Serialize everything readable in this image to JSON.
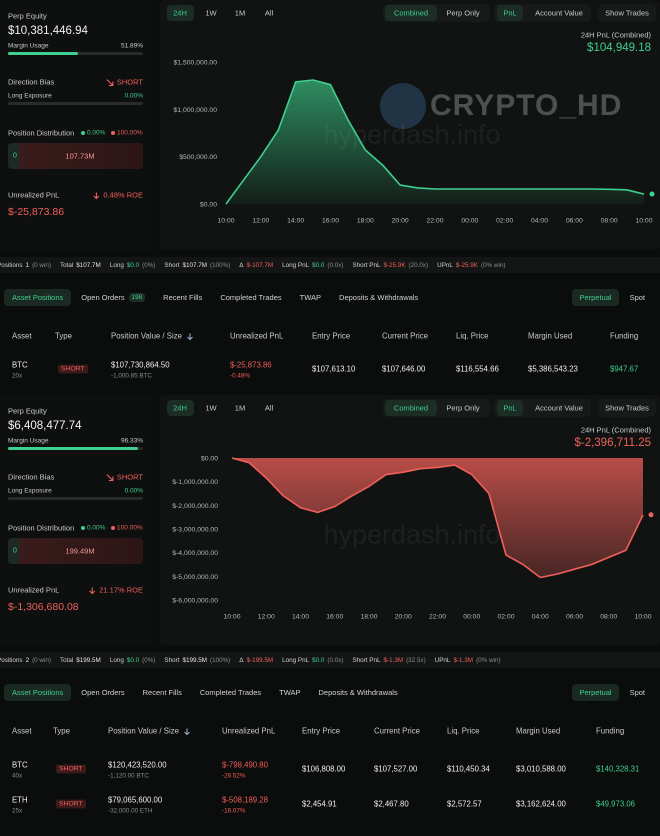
{
  "panels": [
    {
      "sidebar": {
        "perp_equity_label": "Perp Equity",
        "perp_equity": "$10,381,446.94",
        "margin_usage_label": "Margin Usage",
        "margin_usage": {
          "value": 51.89,
          "label": "51.89%"
        },
        "direction_bias_label": "Direction Bias",
        "direction_bias": "SHORT",
        "long_exposure_label": "Long Exposure",
        "long_exposure": {
          "value": 0,
          "label": "0.00%"
        },
        "position_distribution_label": "Position Distribution",
        "long_share": "0.00%",
        "short_share": "100.00%",
        "long_amount": "0",
        "short_amount": "107.73M",
        "unrealized_pnl_label": "Unrealized PnL",
        "roe": "0.48% ROE",
        "unrealized_pnl": "$-25,873.86"
      },
      "chart_controls": {
        "ranges": [
          "24H",
          "1W",
          "1M",
          "All"
        ],
        "views": [
          "Combined",
          "Perp Only"
        ],
        "metrics": [
          "PnL",
          "Account Value"
        ],
        "show_trades": "Show Trades"
      },
      "brand_watermark": "CRYPTO_HD",
      "site_watermark": "hyperdash.info",
      "chart": {
        "type": "area",
        "title": "24H PnL (Combined)",
        "total": "$104,949.18",
        "color": "#3fcf8e",
        "categories": [
          "10:00",
          null,
          "12:00",
          null,
          "14:00",
          null,
          "16:00",
          null,
          "18:00",
          null,
          "20:00",
          null,
          "22:00",
          null,
          "00:00",
          null,
          "02:00",
          null,
          "04:00",
          null,
          "06:00",
          null,
          "08:00",
          null,
          "10:00"
        ],
        "values": [
          0,
          250000,
          500000,
          780000,
          1290000,
          1310000,
          1260000,
          890000,
          570000,
          410000,
          200000,
          170000,
          158000,
          158000,
          158000,
          158000,
          158000,
          158000,
          158000,
          158000,
          158000,
          158000,
          155000,
          150000,
          105000
        ],
        "ylim": [
          0,
          1500000
        ],
        "yticks": [
          {
            "value": 0,
            "label": "$0.00"
          },
          {
            "value": 500000,
            "label": "$500,000.00"
          },
          {
            "value": 1000000,
            "label": "$1,000,000.00"
          },
          {
            "value": 1500000,
            "label": "$1,500,000.00"
          }
        ]
      },
      "summary": [
        {
          "label": "Positions",
          "value": "1",
          "note": "(0 win)"
        },
        {
          "label": "Total",
          "value": "$107.7M"
        },
        {
          "label": "Long",
          "value": "$0.0",
          "note": "(0%)"
        },
        {
          "label": "Short",
          "value": "$107.7M",
          "note": "(100%)"
        },
        {
          "label": "Δ",
          "value": "$-107.7M"
        },
        {
          "label": "Long PnL",
          "value": "$0.0",
          "note": "(0.0x)"
        },
        {
          "label": "Short PnL",
          "value": "$-25.9K",
          "note": "(20.0x)"
        },
        {
          "label": "UPnL",
          "value": "$-25.9K",
          "note": "(0% win)"
        }
      ],
      "tabs": [
        {
          "label": "Asset Positions"
        },
        {
          "label": "Open Orders",
          "badge": "198"
        },
        {
          "label": "Recent Fills"
        },
        {
          "label": "Completed Trades"
        },
        {
          "label": "TWAP"
        },
        {
          "label": "Deposits & Withdrawals"
        }
      ],
      "market_tabs": [
        "Perpetual",
        "Spot"
      ],
      "table": {
        "columns": [
          "Asset",
          "Type",
          "Position Value / Size",
          "Unrealized PnL",
          "Entry Price",
          "Current Price",
          "Liq. Price",
          "Margin Used",
          "Funding"
        ],
        "rows": [
          {
            "asset": "BTC",
            "leverage": "20x",
            "type": "SHORT",
            "position_value": "$107,730,864.50",
            "size": "-1,000.85 BTC",
            "unrealized_pnl": "$-25,873.86",
            "pnl_pct": "-0.48%",
            "entry": "$107,613.10",
            "current": "$107,646.00",
            "liq": "$116,554.66",
            "margin": "$5,386,543.23",
            "funding": "$947.67"
          }
        ]
      }
    },
    {
      "sidebar": {
        "perp_equity_label": "Perp Equity",
        "perp_equity": "$6,408,477.74",
        "margin_usage_label": "Margin Usage",
        "margin_usage": {
          "value": 96.33,
          "label": "96.33%"
        },
        "direction_bias_label": "Direction Bias",
        "direction_bias": "SHORT",
        "long_exposure_label": "Long Exposure",
        "long_exposure": {
          "value": 0,
          "label": "0.00%"
        },
        "position_distribution_label": "Position Distribution",
        "long_share": "0.00%",
        "short_share": "100.00%",
        "long_amount": "0",
        "short_amount": "199.49M",
        "unrealized_pnl_label": "Unrealized PnL",
        "roe": "21.17% ROE",
        "unrealized_pnl": "$-1,306,680.08"
      },
      "chart_controls": {
        "ranges": [
          "24H",
          "1W",
          "1M",
          "All"
        ],
        "views": [
          "Combined",
          "Perp Only"
        ],
        "metrics": [
          "PnL",
          "Account Value"
        ],
        "show_trades": "Show Trades"
      },
      "site_watermark": "hyperdash.info",
      "chart": {
        "type": "area",
        "title": "24H PnL (Combined)",
        "total": "$-2,396,711.25",
        "color": "#f0605a",
        "categories": [
          "10:00",
          null,
          "12:00",
          null,
          "14:00",
          null,
          "16:00",
          null,
          "18:00",
          null,
          "20:00",
          null,
          "22:00",
          null,
          "00:00",
          null,
          "02:00",
          null,
          "04:00",
          null,
          "06:00",
          null,
          "08:00",
          null,
          "10:00"
        ],
        "values": [
          0,
          -200000,
          -850000,
          -1600000,
          -2100000,
          -2300000,
          -2050000,
          -1600000,
          -1200000,
          -700000,
          -600000,
          -450000,
          -400000,
          -300000,
          -700000,
          -1500000,
          -4100000,
          -4500000,
          -5050000,
          -4900000,
          -4700000,
          -4500000,
          -4200000,
          -3900000,
          -2400000
        ],
        "ylim": [
          -6000000,
          0
        ],
        "yticks": [
          {
            "value": 0,
            "label": "$0.00"
          },
          {
            "value": -1000000,
            "label": "$-1,000,000.00"
          },
          {
            "value": -2000000,
            "label": "$-2,000,000.00"
          },
          {
            "value": -3000000,
            "label": "$-3,000,000.00"
          },
          {
            "value": -4000000,
            "label": "$-4,000,000.00"
          },
          {
            "value": -5000000,
            "label": "$-5,000,000.00"
          },
          {
            "value": -6000000,
            "label": "$-6,000,000.00"
          }
        ]
      },
      "summary": [
        {
          "label": "Positions",
          "value": "2",
          "note": "(0 win)"
        },
        {
          "label": "Total",
          "value": "$199.5M"
        },
        {
          "label": "Long",
          "value": "$0.0",
          "note": "(0%)"
        },
        {
          "label": "Short",
          "value": "$199.5M",
          "note": "(100%)"
        },
        {
          "label": "Δ",
          "value": "$-199.5M"
        },
        {
          "label": "Long PnL",
          "value": "$0.0",
          "note": "(0.0x)"
        },
        {
          "label": "Short PnL",
          "value": "$-1.3M",
          "note": "(32.5x)"
        },
        {
          "label": "UPnL",
          "value": "$-1.3M",
          "note": "(0% win)"
        }
      ],
      "tabs": [
        {
          "label": "Asset Positions"
        },
        {
          "label": "Open Orders"
        },
        {
          "label": "Recent Fills"
        },
        {
          "label": "Completed Trades"
        },
        {
          "label": "TWAP"
        },
        {
          "label": "Deposits & Withdrawals"
        }
      ],
      "market_tabs": [
        "Perpetual",
        "Spot"
      ],
      "table": {
        "columns": [
          "Asset",
          "Type",
          "Position Value / Size",
          "Unrealized PnL",
          "Entry Price",
          "Current Price",
          "Liq. Price",
          "Margin Used",
          "Funding"
        ],
        "rows": [
          {
            "asset": "BTC",
            "leverage": "40x",
            "type": "SHORT",
            "position_value": "$120,423,520.00",
            "size": "-1,120.00 BTC",
            "unrealized_pnl": "$-798,490.80",
            "pnl_pct": "-26.52%",
            "entry": "$106,808.00",
            "current": "$107,527.00",
            "liq": "$110,450.34",
            "margin": "$3,010,588.00",
            "funding": "$140,328.31"
          },
          {
            "asset": "ETH",
            "leverage": "25x",
            "type": "SHORT",
            "position_value": "$79,065,600.00",
            "size": "-32,000.00 ETH",
            "unrealized_pnl": "$-508,189.28",
            "pnl_pct": "-16.07%",
            "entry": "$2,454.91",
            "current": "$2,467.80",
            "liq": "$2,572.57",
            "margin": "$3,162,624.00",
            "funding": "$49,973.06"
          }
        ]
      }
    }
  ]
}
